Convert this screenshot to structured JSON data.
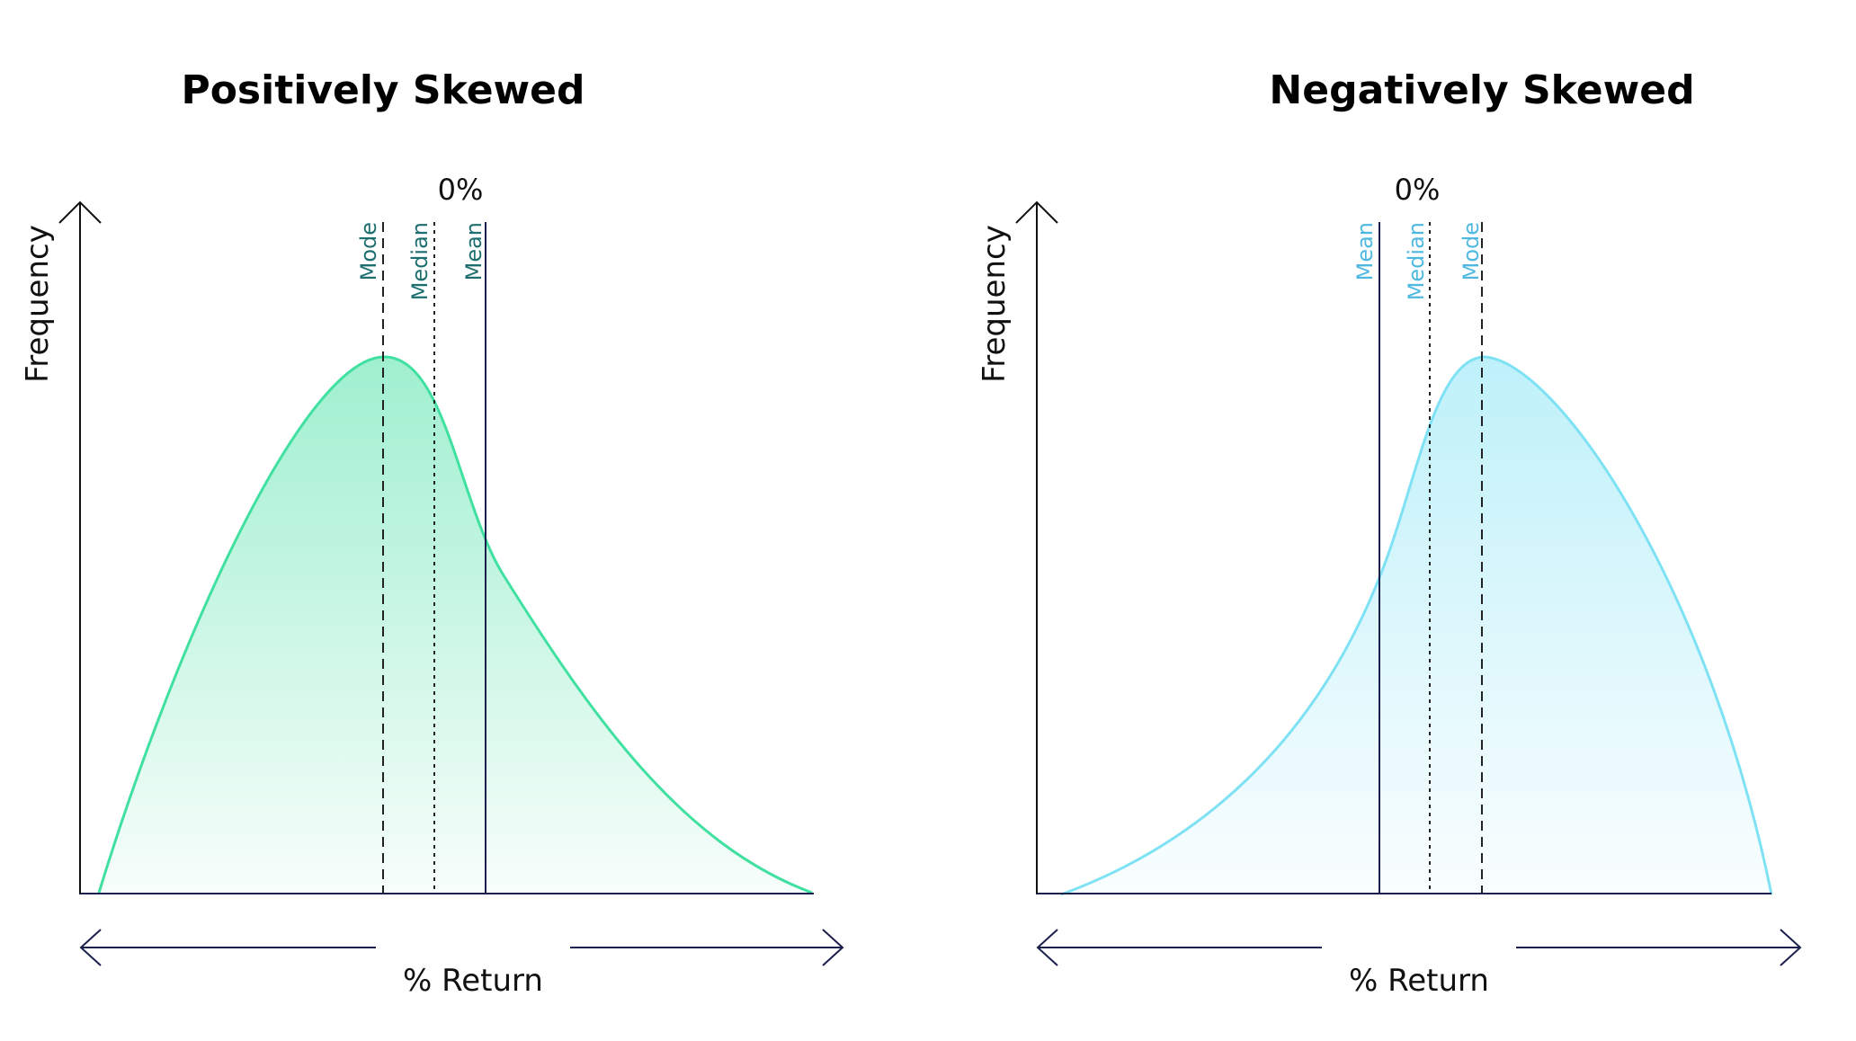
{
  "panels": [
    {
      "id": "positive",
      "title": "Positively Skewed",
      "y_axis_label": "Frequency",
      "x_axis_label": "% Return",
      "zero_label": "0%",
      "curve_color": "#40E0A0",
      "label_color": "#1E6E70",
      "markers": [
        {
          "label": "Mode",
          "style": "dashed"
        },
        {
          "label": "Median",
          "style": "dotted"
        },
        {
          "label": "Mean",
          "style": "solid"
        }
      ]
    },
    {
      "id": "negative",
      "title": "Negatively Skewed",
      "y_axis_label": "Frequency",
      "x_axis_label": "% Return",
      "zero_label": "0%",
      "curve_color": "#7EE2F4",
      "label_color": "#4FB8E0",
      "markers": [
        {
          "label": "Mean",
          "style": "solid"
        },
        {
          "label": "Median",
          "style": "dotted"
        },
        {
          "label": "Mode",
          "style": "dashed"
        }
      ]
    }
  ],
  "colors": {
    "axis": "#111111",
    "x_arrow": "#1B1F4B",
    "marker_line": "#222222",
    "mean_line": "#1B1F4B"
  }
}
